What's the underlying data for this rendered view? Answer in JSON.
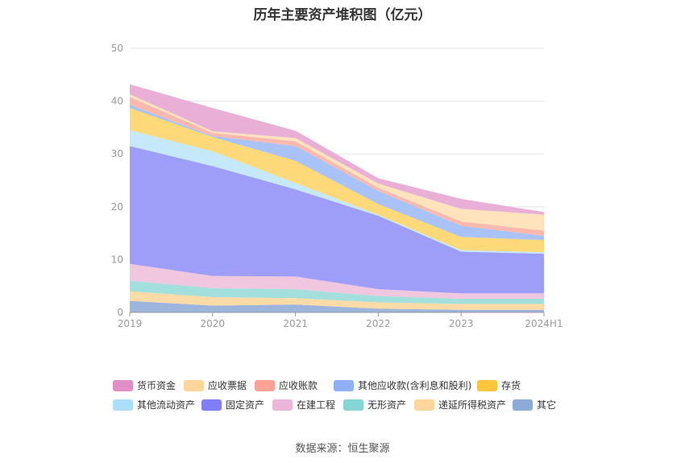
{
  "chart_data": {
    "type": "area",
    "stacked": true,
    "title": "历年主要资产堆积图（亿元）",
    "categories": [
      "2019",
      "2020",
      "2021",
      "2022",
      "2023",
      "2024H1"
    ],
    "ylim": [
      0,
      50
    ],
    "yticks": [
      0,
      10,
      20,
      30,
      40,
      50
    ],
    "series": [
      {
        "name": "其它",
        "color": "#9db4dc",
        "values": [
          2.2,
          1.3,
          1.5,
          0.7,
          0.5,
          0.5
        ]
      },
      {
        "name": "递延所得税资产",
        "color": "#fddba6",
        "values": [
          1.8,
          1.6,
          1.2,
          1.2,
          1.1,
          1.1
        ]
      },
      {
        "name": "无形资产",
        "color": "#a3dfdc",
        "values": [
          2.0,
          1.7,
          1.7,
          1.2,
          1.0,
          1.0
        ]
      },
      {
        "name": "在建工程",
        "color": "#f1c6df",
        "values": [
          3.2,
          2.3,
          2.4,
          1.3,
          1.0,
          1.0
        ]
      },
      {
        "name": "固定资产",
        "color": "#9e9df7",
        "values": [
          22.3,
          20.8,
          16.5,
          13.9,
          7.9,
          7.5
        ]
      },
      {
        "name": "其他流动资产",
        "color": "#c5e8fa",
        "values": [
          3.0,
          2.8,
          1.2,
          0.2,
          0.3,
          0.3
        ]
      },
      {
        "name": "存货",
        "color": "#fdd97a",
        "values": [
          4.2,
          2.7,
          4.2,
          2.0,
          2.5,
          2.3
        ]
      },
      {
        "name": "其他应收款(含利息和股利)",
        "color": "#a9c3f8",
        "values": [
          0.6,
          0.2,
          2.8,
          2.5,
          2.1,
          0.8
        ]
      },
      {
        "name": "应收账款",
        "color": "#fbb8ad",
        "values": [
          1.5,
          0.6,
          0.9,
          0.6,
          0.8,
          1.0
        ]
      },
      {
        "name": "应收票据",
        "color": "#fee3bd",
        "values": [
          0.5,
          0.3,
          0.6,
          0.8,
          2.4,
          3.0
        ]
      },
      {
        "name": "货币资金",
        "color": "#e9afd6",
        "values": [
          1.9,
          4.4,
          1.4,
          1.0,
          1.9,
          0.5
        ]
      }
    ]
  },
  "legend": [
    {
      "name": "货币资金",
      "color": "#e08ec3"
    },
    {
      "name": "应收票据",
      "color": "#fed69c"
    },
    {
      "name": "应收账款",
      "color": "#faa396"
    },
    {
      "name": "其他应收款(含利息和股利)",
      "color": "#8fb0f5"
    },
    {
      "name": "存货",
      "color": "#fbc53c"
    },
    {
      "name": "其他流动资产",
      "color": "#abdff9"
    },
    {
      "name": "固定资产",
      "color": "#7f7ef2"
    },
    {
      "name": "在建工程",
      "color": "#ebb6d9"
    },
    {
      "name": "无形资产",
      "color": "#84d5d3"
    },
    {
      "name": "递延所得税资产",
      "color": "#fed69c"
    },
    {
      "name": "其它",
      "color": "#8eaad8"
    }
  ],
  "source": "数据来源：恒生聚源"
}
